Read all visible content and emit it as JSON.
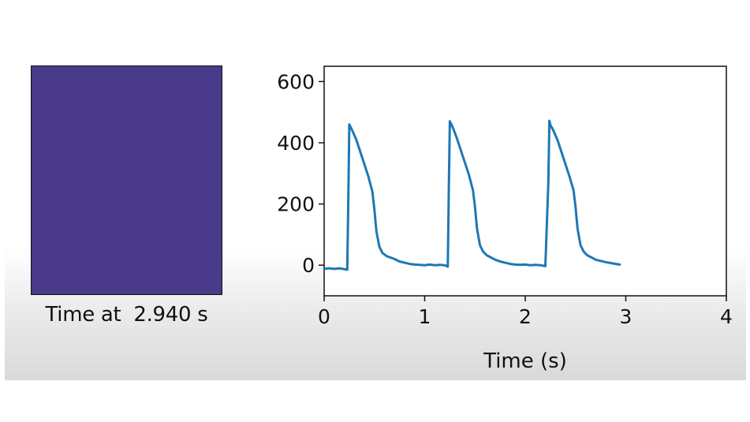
{
  "image_panel": {
    "fill_color": "#4a3a8a",
    "caption": "Time at  2.940 s"
  },
  "chart_data": {
    "type": "line",
    "title": "",
    "xlabel": "Time (s)",
    "ylabel": "",
    "xlim": [
      0,
      4
    ],
    "ylim": [
      -100,
      650
    ],
    "xticks": [
      0,
      1,
      2,
      3,
      4
    ],
    "yticks": [
      0,
      200,
      400,
      600
    ],
    "grid": false,
    "series": [
      {
        "color": "#1f77b4",
        "x": [
          0.0,
          0.05,
          0.1,
          0.15,
          0.2,
          0.23,
          0.24,
          0.25,
          0.28,
          0.32,
          0.36,
          0.4,
          0.44,
          0.48,
          0.5,
          0.52,
          0.55,
          0.58,
          0.6,
          0.62,
          0.66,
          0.7,
          0.75,
          0.8,
          0.85,
          0.9,
          0.95,
          1.0,
          1.05,
          1.1,
          1.15,
          1.2,
          1.23,
          1.24,
          1.25,
          1.28,
          1.32,
          1.36,
          1.4,
          1.44,
          1.48,
          1.5,
          1.52,
          1.55,
          1.58,
          1.6,
          1.62,
          1.66,
          1.7,
          1.75,
          1.8,
          1.85,
          1.9,
          1.95,
          2.0,
          2.05,
          2.1,
          2.15,
          2.2,
          2.23,
          2.24,
          2.25,
          2.28,
          2.32,
          2.36,
          2.4,
          2.44,
          2.48,
          2.5,
          2.52,
          2.55,
          2.58,
          2.6,
          2.62,
          2.66,
          2.7,
          2.75,
          2.8,
          2.85,
          2.9,
          2.94
        ],
        "y": [
          -12,
          -10,
          -12,
          -10,
          -13,
          -15,
          200,
          460,
          440,
          410,
          370,
          330,
          290,
          240,
          180,
          110,
          60,
          40,
          35,
          30,
          25,
          20,
          12,
          8,
          4,
          2,
          1,
          0,
          2,
          0,
          1,
          0,
          -5,
          250,
          470,
          450,
          415,
          375,
          335,
          295,
          245,
          190,
          120,
          65,
          45,
          38,
          32,
          25,
          18,
          12,
          8,
          4,
          2,
          1,
          2,
          0,
          1,
          0,
          -3,
          270,
          472,
          458,
          440,
          410,
          370,
          330,
          290,
          245,
          190,
          120,
          65,
          45,
          38,
          32,
          25,
          18,
          14,
          10,
          7,
          4,
          2
        ]
      }
    ]
  }
}
